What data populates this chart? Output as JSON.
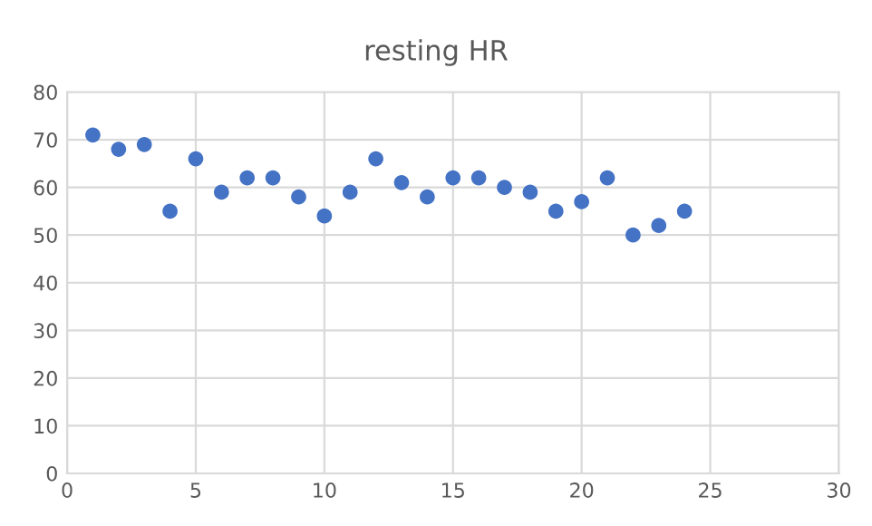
{
  "chart_data": {
    "type": "scatter",
    "title": "resting HR",
    "x": [
      1,
      2,
      3,
      4,
      5,
      6,
      7,
      8,
      9,
      10,
      11,
      12,
      13,
      14,
      15,
      16,
      17,
      18,
      19,
      20,
      21,
      22,
      23,
      24
    ],
    "series": [
      {
        "color": "#4472c4",
        "values": [
          71,
          68,
          69,
          55,
          66,
          59,
          62,
          62,
          58,
          54,
          59,
          66,
          61,
          58,
          62,
          62,
          60,
          59,
          55,
          57,
          62,
          50,
          52,
          55
        ]
      }
    ],
    "xlim": [
      0,
      30
    ],
    "xticks": [
      0,
      5,
      10,
      15,
      20,
      25,
      30
    ],
    "ylim": [
      0,
      80
    ],
    "yticks": [
      0,
      10,
      20,
      30,
      40,
      50,
      60,
      70,
      80
    ],
    "grid": true,
    "marker": "circle"
  }
}
